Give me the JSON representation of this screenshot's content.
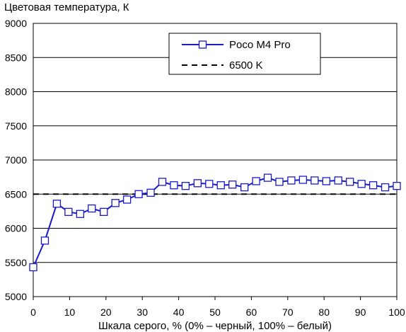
{
  "chart_data": {
    "type": "line",
    "title": "",
    "ylabel": "Цветовая температура, К",
    "xlabel": "Шкала серого, % (0% – черный, 100% – белый)",
    "xlim": [
      0,
      100
    ],
    "ylim": [
      5000,
      9000
    ],
    "x_ticks": [
      "0",
      "10",
      "20",
      "30",
      "40",
      "50",
      "60",
      "70",
      "80",
      "90",
      "100"
    ],
    "y_ticks": [
      "5000",
      "5500",
      "6000",
      "6500",
      "7000",
      "7500",
      "8000",
      "8500",
      "9000"
    ],
    "grid": "horizontal",
    "legend_position": "top-right",
    "series": [
      {
        "name": "Poco M4 Pro",
        "color": "#1a1acc",
        "marker": "square",
        "x": [
          0,
          3.2,
          6.5,
          9.7,
          12.9,
          16.1,
          19.4,
          22.6,
          25.8,
          29.0,
          32.3,
          35.5,
          38.7,
          41.9,
          45.2,
          48.4,
          51.6,
          54.8,
          58.1,
          61.3,
          64.5,
          67.7,
          71.0,
          74.2,
          77.4,
          80.6,
          83.9,
          87.1,
          90.3,
          93.5,
          96.8,
          100
        ],
        "y": [
          5430,
          5820,
          6360,
          6240,
          6210,
          6290,
          6240,
          6370,
          6420,
          6500,
          6520,
          6680,
          6630,
          6620,
          6660,
          6650,
          6630,
          6640,
          6600,
          6690,
          6740,
          6680,
          6700,
          6710,
          6700,
          6690,
          6700,
          6680,
          6650,
          6630,
          6600,
          6620
        ]
      },
      {
        "name": "6500 K",
        "color": "#000000",
        "style": "dashed",
        "reference_y": 6500
      }
    ]
  }
}
